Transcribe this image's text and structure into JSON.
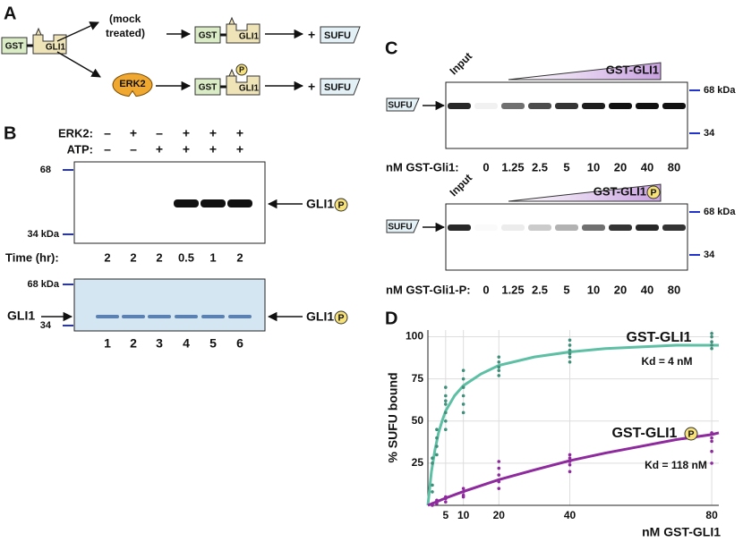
{
  "panel_labels": [
    "A",
    "B",
    "C",
    "D"
  ],
  "panel_a": {
    "gst": "GST",
    "gli1": "GLI1",
    "mock": [
      "(mock",
      "treated)"
    ],
    "erk2": "ERK2",
    "p": "P",
    "plus": "+",
    "sufu": "SUFU"
  },
  "panel_b": {
    "row_labels": [
      "ERK2:",
      "ATP:"
    ],
    "erk2": [
      "–",
      "+",
      "–",
      "+",
      "+",
      "+"
    ],
    "atp": [
      "–",
      "–",
      "+",
      "+",
      "+",
      "+"
    ],
    "mw_top": [
      "68",
      "34 kDa"
    ],
    "band_label": "GLI1",
    "time_label": "Time (hr):",
    "times": [
      2,
      2,
      2,
      0.5,
      1,
      2
    ],
    "mw_bottom": [
      "68 kDa",
      "34"
    ],
    "lanes": [
      1,
      2,
      3,
      4,
      5,
      6
    ]
  },
  "panel_c": {
    "input": "Input",
    "gels": [
      {
        "triangle_label": "GST-GLI1",
        "conc_label": "nM GST-Gli1:"
      },
      {
        "triangle_label": "GST-GLI1",
        "conc_label": "nM GST-Gli1-P:"
      }
    ],
    "sufu": "SUFU",
    "mw": [
      "68 kDa",
      "34"
    ],
    "conc": [
      0,
      1.25,
      2.5,
      5,
      10,
      20,
      40,
      80
    ]
  },
  "chart_data": {
    "type": "scatter",
    "y_label": "% SUFU bound",
    "x_label": "nM GST-GLI1",
    "xlim": [
      0,
      82
    ],
    "ylim": [
      0,
      104
    ],
    "xticks": [
      5,
      10,
      20,
      40,
      80
    ],
    "yticks": [
      25,
      50,
      75,
      100
    ],
    "grid": true,
    "series": [
      {
        "name": "GST-GLI1",
        "color": "#3f8f7a",
        "x": [
          1.25,
          1.25,
          1.25,
          1.25,
          2.5,
          2.5,
          2.5,
          2.5,
          5,
          5,
          5,
          5,
          5,
          5,
          5,
          10,
          10,
          10,
          10,
          10,
          10,
          20,
          20,
          20,
          20,
          20,
          40,
          40,
          40,
          40,
          40,
          40,
          80,
          80,
          80,
          80,
          80
        ],
        "values": [
          8,
          12,
          25,
          28,
          30,
          35,
          40,
          45,
          45,
          50,
          55,
          60,
          62,
          65,
          70,
          55,
          60,
          65,
          70,
          75,
          80,
          77,
          80,
          82,
          85,
          88,
          85,
          88,
          90,
          92,
          95,
          98,
          93,
          95,
          97,
          100,
          102
        ]
      },
      {
        "name": "GST-GLI1",
        "color": "#8e2a9e",
        "x": [
          1.25,
          1.25,
          2.5,
          2.5,
          2.5,
          5,
          5,
          5,
          10,
          10,
          10,
          10,
          20,
          20,
          20,
          20,
          20,
          40,
          40,
          40,
          40,
          40,
          80,
          80,
          80,
          80,
          80
        ],
        "values": [
          0,
          1,
          1,
          2,
          3,
          2,
          4,
          5,
          5,
          6,
          8,
          10,
          10,
          14,
          18,
          22,
          26,
          20,
          24,
          26,
          28,
          30,
          25,
          32,
          38,
          40,
          43
        ]
      }
    ],
    "fits": [
      {
        "color": "#5dbfa3",
        "x": [
          0,
          1,
          2,
          3,
          4,
          5,
          7.5,
          10,
          15,
          20,
          30,
          40,
          50,
          60,
          70,
          80,
          82
        ],
        "values": [
          0,
          20,
          33,
          43,
          50,
          56,
          65,
          71,
          78,
          83,
          88,
          91,
          93,
          94,
          95,
          95,
          95
        ]
      },
      {
        "color": "#8e2a9e",
        "x": [
          0,
          5,
          10,
          20,
          30,
          40,
          50,
          60,
          70,
          80,
          82
        ],
        "values": [
          0,
          4.3,
          8.2,
          15.2,
          21,
          26.5,
          31,
          35,
          39,
          42,
          43
        ]
      }
    ],
    "annotations": [
      "Kd = 4 nM",
      "Kd = 118 nM"
    ]
  }
}
